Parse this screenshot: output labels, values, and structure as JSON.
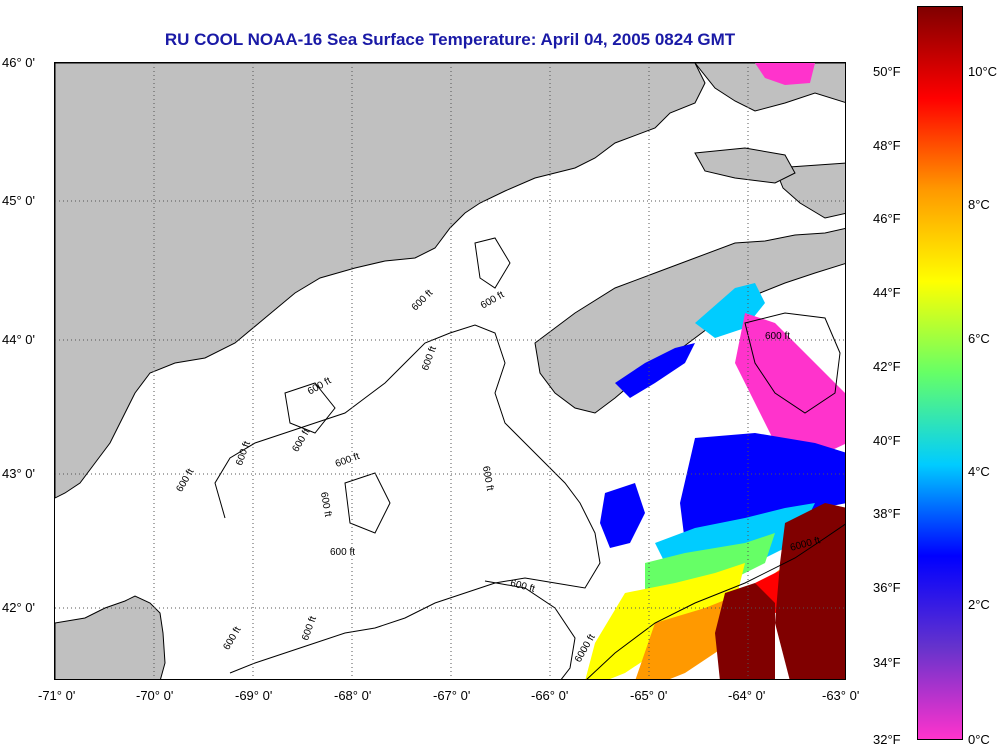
{
  "title": "RU COOL  NOAA-16  Sea Surface Temperature:  April 04, 2005 0824 GMT",
  "latitude_labels": [
    "46° 0'",
    "45° 0'",
    "44° 0'",
    "43° 0'",
    "42° 0'"
  ],
  "longitude_labels": [
    "-71° 0'",
    "-70° 0'",
    "-69° 0'",
    "-68° 0'",
    "-67° 0'",
    "-66° 0'",
    "-65° 0'",
    "-64° 0'",
    "-63° 0'"
  ],
  "contour_labels": [
    "600 ft",
    "600 ft",
    "600 ft",
    "600 ft",
    "600 ft",
    "600 ft",
    "600 ft",
    "600 ft",
    "600 ft",
    "600 ft",
    "600 ft",
    "600 ft",
    "600 ft",
    "6000 ft",
    "6000 ft",
    "600 ft",
    "600 ft"
  ],
  "colorbar": {
    "fahrenheit_labels": [
      "50°F",
      "48°F",
      "46°F",
      "44°F",
      "42°F",
      "40°F",
      "38°F",
      "36°F",
      "34°F",
      "32°F"
    ],
    "celsius_labels": [
      "10°C",
      "8°C",
      "6°C",
      "4°C",
      "2°C",
      "0°C"
    ]
  },
  "colors": {
    "title": "#1a1aa6",
    "land": "#c0c0c0",
    "ocean_no_data": "#ffffff",
    "coastline": "#000000",
    "scale": [
      "#ff33cc",
      "#6633cc",
      "#0000ff",
      "#00ccff",
      "#66ff66",
      "#ffff00",
      "#ff9900",
      "#ff0000",
      "#800000"
    ]
  }
}
